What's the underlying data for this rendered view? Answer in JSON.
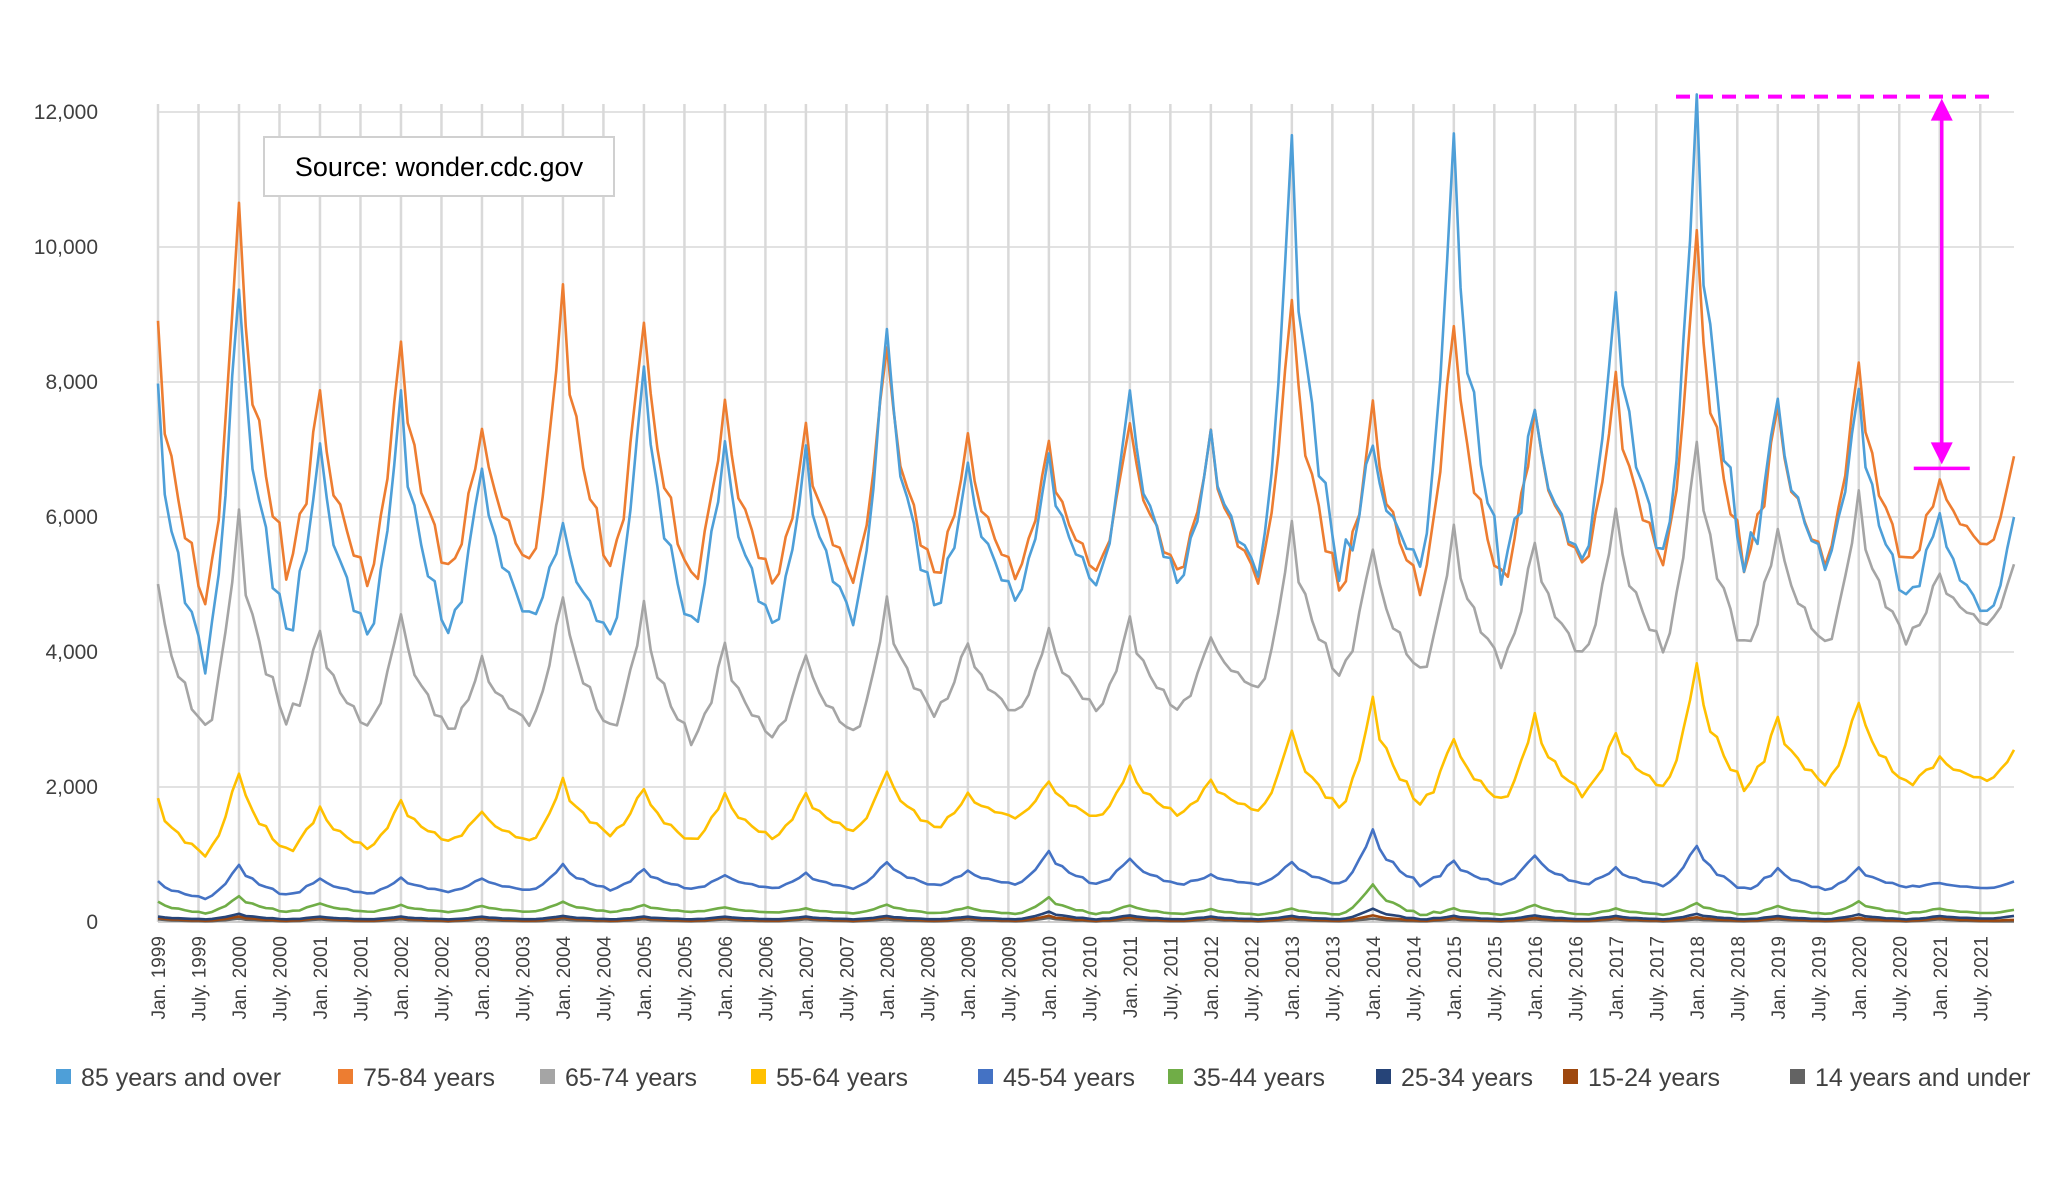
{
  "chart_data": {
    "type": "line",
    "source_text": "Source: wonder.cdc.gov",
    "ylim": [
      0,
      12000
    ],
    "y_ticks": [
      "0",
      "2,000",
      "4,000",
      "6,000",
      "8,000",
      "10,000",
      "12,000"
    ],
    "y_tick_values": [
      0,
      2000,
      4000,
      6000,
      8000,
      10000,
      12000
    ],
    "x_start": "Jan. 1999",
    "x_end": "Dec. 2021",
    "x_tick_labels": [
      "Jan. 1999",
      "July. 1999",
      "Jan. 2000",
      "July. 2000",
      "Jan. 2001",
      "July. 2001",
      "Jan. 2002",
      "July. 2002",
      "Jan. 2003",
      "July. 2003",
      "Jan. 2004",
      "July. 2004",
      "Jan. 2005",
      "July. 2005",
      "Jan. 2006",
      "July. 2006",
      "Jan. 2007",
      "July. 2007",
      "Jan. 2008",
      "July. 2008",
      "Jan. 2009",
      "July. 2009",
      "Jan. 2010",
      "July. 2010",
      "Jan. 2011",
      "July. 2011",
      "Jan. 2012",
      "July. 2012",
      "Jan. 2013",
      "July. 2013",
      "Jan. 2014",
      "July. 2014",
      "Jan. 2015",
      "July. 2015",
      "Jan. 2016",
      "July. 2016",
      "Jan. 2017",
      "July. 2017",
      "Jan. 2018",
      "July. 2018",
      "Jan. 2019",
      "July. 2019",
      "Jan. 2020",
      "July. 2020",
      "Jan. 2021",
      "July. 2021"
    ],
    "grid": "vertical and horizontal",
    "legend_position": "bottom",
    "series": [
      {
        "name": "85 years and over",
        "color": "#4e9fd8",
        "winter_peaks": [
          7800,
          9500,
          7150,
          7800,
          6800,
          5950,
          8400,
          7200,
          6950,
          8850,
          6800,
          6900,
          7900,
          7200,
          11400,
          7050,
          11500,
          7650,
          9400,
          12050,
          7700,
          7900,
          6100
        ],
        "summer_lows": [
          3850,
          4300,
          4250,
          4300,
          4500,
          4250,
          4350,
          4400,
          4500,
          4700,
          4800,
          5000,
          5050,
          5200,
          5250,
          5300,
          5250,
          5350,
          5400,
          5300,
          5300,
          4800,
          4550
        ],
        "last_value": 6000
      },
      {
        "name": "75-84 years",
        "color": "#ed7d31",
        "winter_peaks": [
          8800,
          10550,
          7850,
          8650,
          7400,
          9400,
          9050,
          7750,
          7300,
          8600,
          7200,
          7100,
          7450,
          7200,
          9250,
          7650,
          9000,
          7650,
          8050,
          10150,
          7600,
          8350,
          6600
        ],
        "summer_lows": [
          4750,
          5250,
          5050,
          5200,
          5300,
          5250,
          5050,
          5050,
          5100,
          5150,
          5150,
          5200,
          5200,
          5100,
          4950,
          4950,
          5050,
          5300,
          5350,
          5350,
          5350,
          5300,
          5550
        ],
        "last_value": 6900
      },
      {
        "name": "65-74 years",
        "color": "#a5a5a5",
        "winter_peaks": [
          5100,
          6000,
          4300,
          4600,
          3900,
          4900,
          4700,
          4100,
          4000,
          4750,
          4150,
          4350,
          4500,
          4250,
          5900,
          5600,
          5800,
          5650,
          6100,
          7200,
          5900,
          6300,
          5150
        ],
        "summer_lows": [
          2850,
          3000,
          2900,
          2850,
          2950,
          2850,
          2700,
          2750,
          2800,
          3100,
          3100,
          3150,
          3150,
          3450,
          3650,
          3700,
          3850,
          3950,
          4050,
          4050,
          4100,
          4200,
          4400
        ],
        "last_value": 5300
      },
      {
        "name": "55-64 years",
        "color": "#ffc000",
        "winter_peaks": [
          1800,
          2250,
          1700,
          1800,
          1650,
          2100,
          2000,
          1900,
          1900,
          2250,
          1900,
          2100,
          2300,
          2100,
          2850,
          3300,
          2750,
          3050,
          2800,
          3800,
          3000,
          3300,
          2450
        ],
        "summer_lows": [
          1000,
          1050,
          1100,
          1200,
          1200,
          1300,
          1200,
          1250,
          1350,
          1400,
          1550,
          1550,
          1600,
          1650,
          1700,
          1750,
          1800,
          1900,
          2000,
          2000,
          2050,
          2050,
          2100
        ],
        "last_value": 2550
      },
      {
        "name": "45-54 years",
        "color": "#4472c4",
        "winter_peaks": [
          600,
          850,
          650,
          650,
          650,
          850,
          780,
          700,
          720,
          900,
          760,
          1050,
          950,
          700,
          900,
          1350,
          900,
          1000,
          800,
          1150,
          800,
          800,
          580
        ],
        "summer_lows": [
          350,
          400,
          420,
          450,
          470,
          480,
          490,
          500,
          500,
          540,
          560,
          560,
          560,
          560,
          560,
          560,
          560,
          560,
          540,
          480,
          480,
          520,
          500
        ],
        "last_value": 600
      },
      {
        "name": "35-44 years",
        "color": "#70ad47",
        "winter_peaks": [
          300,
          380,
          280,
          250,
          240,
          300,
          250,
          220,
          200,
          260,
          220,
          360,
          250,
          190,
          200,
          560,
          200,
          260,
          200,
          280,
          240,
          300,
          200
        ],
        "summer_lows": [
          130,
          150,
          150,
          150,
          150,
          150,
          150,
          140,
          130,
          130,
          120,
          120,
          120,
          110,
          110,
          110,
          110,
          110,
          110,
          110,
          120,
          130,
          130
        ],
        "last_value": 180
      },
      {
        "name": "25-34 years",
        "color": "#264478",
        "winter_peaks": [
          80,
          120,
          80,
          80,
          80,
          90,
          80,
          80,
          80,
          90,
          80,
          150,
          100,
          80,
          90,
          200,
          90,
          100,
          90,
          120,
          90,
          110,
          90
        ],
        "summer_lows": [
          40,
          40,
          40,
          40,
          40,
          40,
          40,
          40,
          40,
          40,
          40,
          40,
          40,
          40,
          40,
          40,
          40,
          40,
          40,
          40,
          40,
          40,
          50
        ],
        "last_value": 90
      },
      {
        "name": "15-24 years",
        "color": "#9e480e",
        "winter_peaks": [
          60,
          80,
          60,
          60,
          60,
          70,
          60,
          60,
          60,
          70,
          60,
          90,
          70,
          60,
          60,
          100,
          60,
          60,
          60,
          70,
          60,
          60,
          60
        ],
        "summer_lows": [
          20,
          20,
          20,
          20,
          20,
          20,
          20,
          20,
          20,
          20,
          20,
          20,
          20,
          20,
          20,
          20,
          20,
          20,
          20,
          20,
          20,
          20,
          20
        ],
        "last_value": 30
      },
      {
        "name": "14 years and under",
        "color": "#636363",
        "winter_peaks": [
          40,
          50,
          40,
          40,
          40,
          40,
          40,
          40,
          40,
          40,
          40,
          60,
          40,
          40,
          40,
          50,
          40,
          40,
          40,
          40,
          40,
          40,
          40
        ],
        "summer_lows": [
          10,
          10,
          10,
          10,
          10,
          10,
          10,
          10,
          10,
          10,
          10,
          10,
          10,
          10,
          10,
          10,
          10,
          10,
          10,
          10,
          10,
          10,
          10
        ],
        "last_value": 10
      }
    ],
    "annotation": {
      "color": "#ff00ff",
      "reference_level": 12050,
      "marker_date": "Jan. 2021",
      "marker_level": 6750
    }
  }
}
